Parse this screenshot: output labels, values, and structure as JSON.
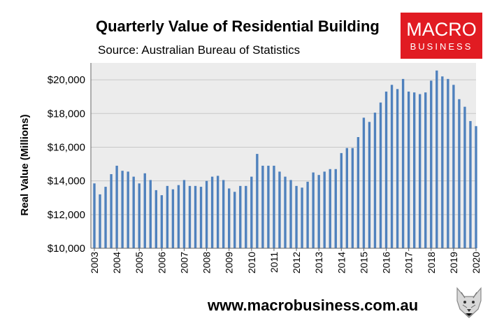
{
  "header": {
    "title": "Quarterly Value of Residential Building",
    "subtitle": "Source: Australian Bureau of Statistics"
  },
  "logo": {
    "line1": "MACRO",
    "line2": "BUSINESS"
  },
  "footer": {
    "url": "www.macrobusiness.com.au",
    "mascot_icon": "wolf-icon"
  },
  "colors": {
    "bar": "#4f81bd",
    "plot_bg": "#ececec",
    "logo_bg": "#e11b22"
  },
  "chart_data": {
    "type": "bar",
    "title": "Quarterly Value of Residential Building",
    "xlabel": "",
    "ylabel": "Real Value (Millions)",
    "ylim": [
      10000,
      21000
    ],
    "yticks": [
      "$10,000",
      "$12,000",
      "$14,000",
      "$16,000",
      "$18,000",
      "$20,000"
    ],
    "ytick_values": [
      10000,
      12000,
      14000,
      16000,
      18000,
      20000
    ],
    "year_labels": [
      "2003",
      "2004",
      "2005",
      "2006",
      "2007",
      "2008",
      "2009",
      "2010",
      "2011",
      "2012",
      "2013",
      "2014",
      "2015",
      "2016",
      "2017",
      "2018",
      "2019",
      "2020"
    ],
    "first_year": 2003,
    "series": [
      {
        "name": "Real Value (Millions)",
        "values": [
          13850,
          13200,
          13650,
          14400,
          14900,
          14600,
          14550,
          14250,
          13850,
          14450,
          14050,
          13450,
          13150,
          13700,
          13500,
          13750,
          14050,
          13700,
          13700,
          13650,
          14000,
          14250,
          14300,
          14050,
          13550,
          13350,
          13700,
          13700,
          14250,
          15600,
          14900,
          14900,
          14900,
          14550,
          14250,
          14050,
          13700,
          13600,
          13950,
          14500,
          14350,
          14550,
          14700,
          14700,
          15650,
          15950,
          15950,
          16600,
          17750,
          17500,
          18050,
          18650,
          19300,
          19700,
          19450,
          20050,
          19300,
          19250,
          19150,
          19250,
          19950,
          20550,
          20200,
          20050,
          19700,
          18850,
          18400,
          17550,
          17250
        ]
      }
    ]
  }
}
